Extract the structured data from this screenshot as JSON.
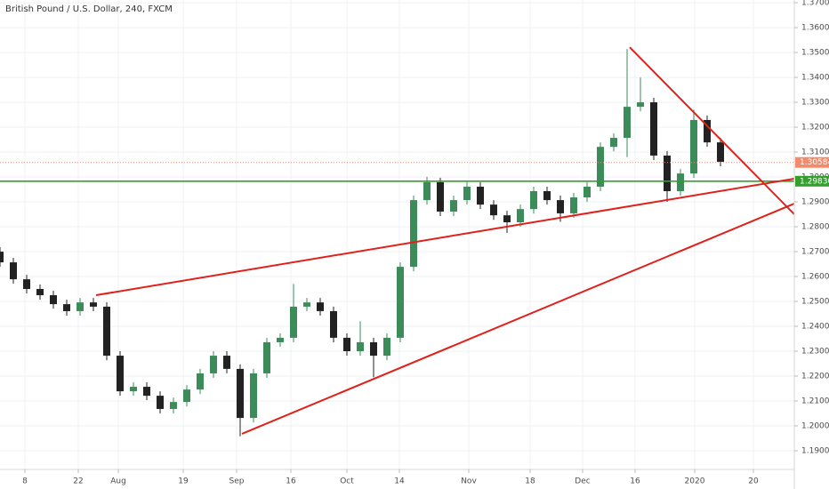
{
  "chart_data": {
    "type": "candlestick",
    "title": "British Pound / U.S. Dollar, 240, FXCM",
    "up_color": "#3c8c5a",
    "down_color": "#222222",
    "grid": true,
    "xlim": [
      0,
      893
    ],
    "ylim": [
      1.1825,
      1.3711
    ],
    "xticks": [
      {
        "value": 28,
        "label": "8"
      },
      {
        "value": 88,
        "label": "22"
      },
      {
        "value": 133,
        "label": "Aug"
      },
      {
        "value": 206,
        "label": "19"
      },
      {
        "value": 266,
        "label": "Sep"
      },
      {
        "value": 327,
        "label": "16"
      },
      {
        "value": 390,
        "label": "Oct"
      },
      {
        "value": 449,
        "label": "14"
      },
      {
        "value": 527,
        "label": "Nov"
      },
      {
        "value": 596,
        "label": "18"
      },
      {
        "value": 655,
        "label": "Dec"
      },
      {
        "value": 714,
        "label": "16"
      },
      {
        "value": 781,
        "label": "2020"
      },
      {
        "value": 847,
        "label": "20"
      }
    ],
    "yticks": [
      {
        "value": 1.19,
        "label": "1.19000"
      },
      {
        "value": 1.2,
        "label": "1.20000"
      },
      {
        "value": 1.21,
        "label": "1.21000"
      },
      {
        "value": 1.22,
        "label": "1.22000"
      },
      {
        "value": 1.23,
        "label": "1.23000"
      },
      {
        "value": 1.24,
        "label": "1.24000"
      },
      {
        "value": 1.25,
        "label": "1.25000"
      },
      {
        "value": 1.26,
        "label": "1.26000"
      },
      {
        "value": 1.27,
        "label": "1.27000"
      },
      {
        "value": 1.28,
        "label": "1.28000"
      },
      {
        "value": 1.29,
        "label": "1.29000"
      },
      {
        "value": 1.3,
        "label": "1.30000"
      },
      {
        "value": 1.31,
        "label": "1.31000"
      },
      {
        "value": 1.32,
        "label": "1.32000"
      },
      {
        "value": 1.33,
        "label": "1.33000"
      },
      {
        "value": 1.34,
        "label": "1.34000"
      },
      {
        "value": 1.35,
        "label": "1.35000"
      },
      {
        "value": 1.36,
        "label": "1.36000"
      },
      {
        "value": 1.37,
        "label": "1.37000"
      }
    ],
    "x": [
      0,
      15,
      30,
      45,
      60,
      75,
      90,
      105,
      120,
      135,
      150,
      165,
      180,
      195,
      210,
      225,
      240,
      255,
      270,
      285,
      300,
      315,
      330,
      345,
      360,
      375,
      390,
      405,
      420,
      435,
      450,
      465,
      480,
      495,
      510,
      525,
      540,
      555,
      570,
      585,
      600,
      615,
      630,
      645,
      660,
      675,
      690,
      705,
      720,
      735,
      750,
      765,
      780,
      795,
      810
    ],
    "open": [
      1.27,
      1.2657,
      1.2589,
      1.255,
      1.2525,
      1.2489,
      1.2461,
      1.2496,
      1.2479,
      1.2282,
      1.2139,
      1.2157,
      1.2121,
      1.2068,
      1.2096,
      1.2146,
      1.2211,
      1.2282,
      1.2229,
      1.2032,
      1.2211,
      1.2336,
      1.2354,
      1.2479,
      1.2496,
      1.2461,
      1.2354,
      1.23,
      1.2336,
      1.2282,
      1.2354,
      1.2639,
      1.2907,
      1.2979,
      1.2861,
      1.2907,
      1.2961,
      1.2889,
      1.2846,
      1.2818,
      1.2871,
      1.2943,
      1.2907,
      1.2854,
      1.2918,
      1.2961,
      1.3121,
      1.3157,
      1.3282,
      1.33,
      1.3086,
      1.2943,
      1.3014,
      1.3229,
      1.3139
    ],
    "high": [
      1.2718,
      1.2675,
      1.2607,
      1.2568,
      1.2543,
      1.2507,
      1.2514,
      1.2514,
      1.2497,
      1.23,
      1.2175,
      1.2175,
      1.2139,
      1.2114,
      1.2164,
      1.2229,
      1.23,
      1.23,
      1.2247,
      1.2229,
      1.2354,
      1.2372,
      1.257,
      1.2514,
      1.2514,
      1.2479,
      1.2372,
      1.242,
      1.2354,
      1.2372,
      1.2657,
      1.2925,
      1.3,
      1.2997,
      1.2925,
      1.2979,
      1.2979,
      1.2907,
      1.2864,
      1.2889,
      1.2961,
      1.2961,
      1.2925,
      1.2936,
      1.2979,
      1.3139,
      1.3175,
      1.3514,
      1.34,
      1.3318,
      1.3104,
      1.3032,
      1.327,
      1.3247,
      1.3157
    ],
    "low": [
      1.2639,
      1.2571,
      1.2532,
      1.2507,
      1.2471,
      1.2443,
      1.2443,
      1.2461,
      1.2264,
      1.2121,
      1.2121,
      1.2103,
      1.205,
      1.205,
      1.2078,
      1.2128,
      1.2193,
      1.2211,
      1.1958,
      1.2014,
      1.2193,
      1.2318,
      1.2336,
      1.2461,
      1.2443,
      1.2336,
      1.2282,
      1.2282,
      1.2195,
      1.2264,
      1.2336,
      1.2621,
      1.2889,
      1.2843,
      1.2843,
      1.2889,
      1.2871,
      1.2828,
      1.2775,
      1.28,
      1.2853,
      1.2889,
      1.282,
      1.2836,
      1.29,
      1.2943,
      1.3103,
      1.308,
      1.3264,
      1.3068,
      1.29,
      1.2925,
      1.2996,
      1.3121,
      1.3043
    ],
    "close": [
      1.2657,
      1.2589,
      1.255,
      1.2525,
      1.2489,
      1.2461,
      1.2496,
      1.2479,
      1.2282,
      1.2139,
      1.2157,
      1.2121,
      1.2068,
      1.2096,
      1.2146,
      1.2211,
      1.2282,
      1.2229,
      1.2032,
      1.2211,
      1.2336,
      1.2354,
      1.2479,
      1.2496,
      1.2461,
      1.2354,
      1.23,
      1.2336,
      1.2282,
      1.2354,
      1.2639,
      1.2907,
      1.2979,
      1.2861,
      1.2907,
      1.2961,
      1.2889,
      1.2846,
      1.2818,
      1.2871,
      1.2943,
      1.2907,
      1.2854,
      1.2918,
      1.2961,
      1.3121,
      1.3157,
      1.3282,
      1.33,
      1.3086,
      1.2943,
      1.3014,
      1.3229,
      1.3139,
      1.3061
    ],
    "trendlines": [
      {
        "x1": 108,
        "y1": 1.2525,
        "x2": 893,
        "y2": 1.2993,
        "color": "#e0201b"
      },
      {
        "x1": 272,
        "y1": 1.1968,
        "x2": 893,
        "y2": 1.2893,
        "color": "#e0201b"
      },
      {
        "x1": 708,
        "y1": 1.3521,
        "x2": 893,
        "y2": 1.285,
        "color": "#e0201b"
      }
    ],
    "hline": {
      "value": 1.2983,
      "label": "1.29830",
      "color": "#33a02c"
    },
    "last_price": {
      "value": 1.30584,
      "label": "1.30584",
      "color": "#f28b6b"
    }
  }
}
